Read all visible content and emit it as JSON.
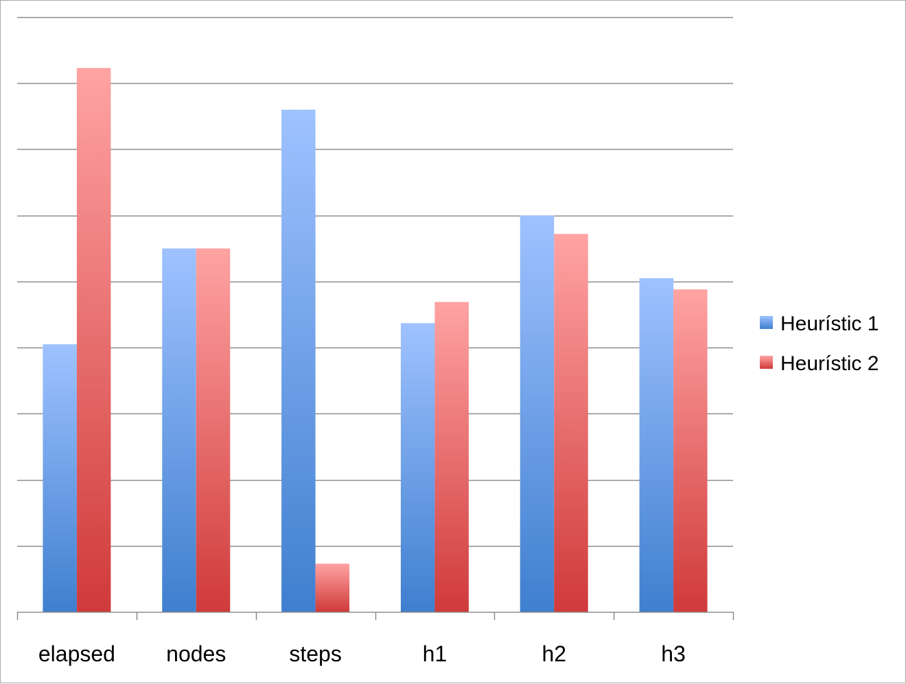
{
  "colors": {
    "series1_top": "#9fc2ff",
    "series1_bottom": "#3f7fcf",
    "series2_top": "#ffa3a3",
    "series2_bottom": "#d03a3a",
    "grid": "#8c8c8c",
    "frame": "#a6a6a6"
  },
  "chart_data": {
    "type": "bar",
    "title": "",
    "xlabel": "",
    "ylabel": "",
    "categories": [
      "elapsed",
      "nodes",
      "steps",
      "h1",
      "h2",
      "h3"
    ],
    "series": [
      {
        "name": "Heurístic 1",
        "values": [
          4.05,
          5.5,
          7.6,
          4.37,
          6.0,
          5.05
        ]
      },
      {
        "name": "Heurístic 2",
        "values": [
          8.23,
          5.5,
          0.73,
          4.69,
          5.72,
          4.88
        ]
      }
    ],
    "ylim": [
      0,
      9
    ],
    "grid": true,
    "y_tick_labels_shown": false,
    "legend": {
      "position": "right",
      "entries": [
        "Heurístic 1",
        "Heurístic 2"
      ]
    }
  }
}
